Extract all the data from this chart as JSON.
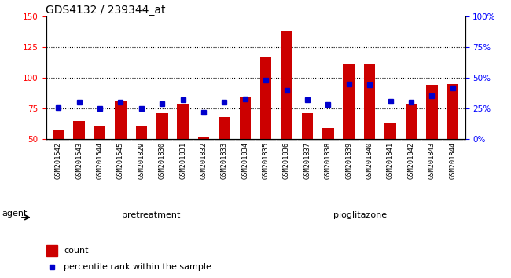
{
  "title": "GDS4132 / 239344_at",
  "categories": [
    "GSM201542",
    "GSM201543",
    "GSM201544",
    "GSM201545",
    "GSM201829",
    "GSM201830",
    "GSM201831",
    "GSM201832",
    "GSM201833",
    "GSM201834",
    "GSM201835",
    "GSM201836",
    "GSM201837",
    "GSM201838",
    "GSM201839",
    "GSM201840",
    "GSM201841",
    "GSM201842",
    "GSM201843",
    "GSM201844"
  ],
  "count_values": [
    57,
    65,
    60,
    81,
    60,
    71,
    79,
    51,
    68,
    84,
    117,
    138,
    71,
    59,
    111,
    111,
    63,
    79,
    94,
    95
  ],
  "percentile_values": [
    26,
    30,
    25,
    30,
    25,
    29,
    32,
    22,
    30,
    33,
    48,
    40,
    32,
    28,
    45,
    44,
    31,
    30,
    35,
    42
  ],
  "bar_color": "#cc0000",
  "dot_color": "#0000cc",
  "ylim_left": [
    50,
    150
  ],
  "ylim_right": [
    0,
    100
  ],
  "yticks_left": [
    50,
    75,
    100,
    125,
    150
  ],
  "yticks_right": [
    0,
    25,
    50,
    75,
    100
  ],
  "ytick_labels_right": [
    "0%",
    "25%",
    "50%",
    "75%",
    "100%"
  ],
  "hlines": [
    75,
    100,
    125
  ],
  "pretreatment_samples": 10,
  "pioglitazone_samples": 10,
  "pretreatment_label": "pretreatment",
  "pioglitazone_label": "pioglitazone",
  "agent_label": "agent",
  "legend_count": "count",
  "legend_percentile": "percentile rank within the sample",
  "bar_width": 0.55,
  "plot_bg_color": "#ffffff",
  "tick_bg_color": "#c8c8c8",
  "pretreatment_color": "#a0f0a0",
  "pioglitazone_color": "#50d050",
  "title_fontsize": 10,
  "tick_fontsize": 7.5,
  "label_fontsize": 8
}
